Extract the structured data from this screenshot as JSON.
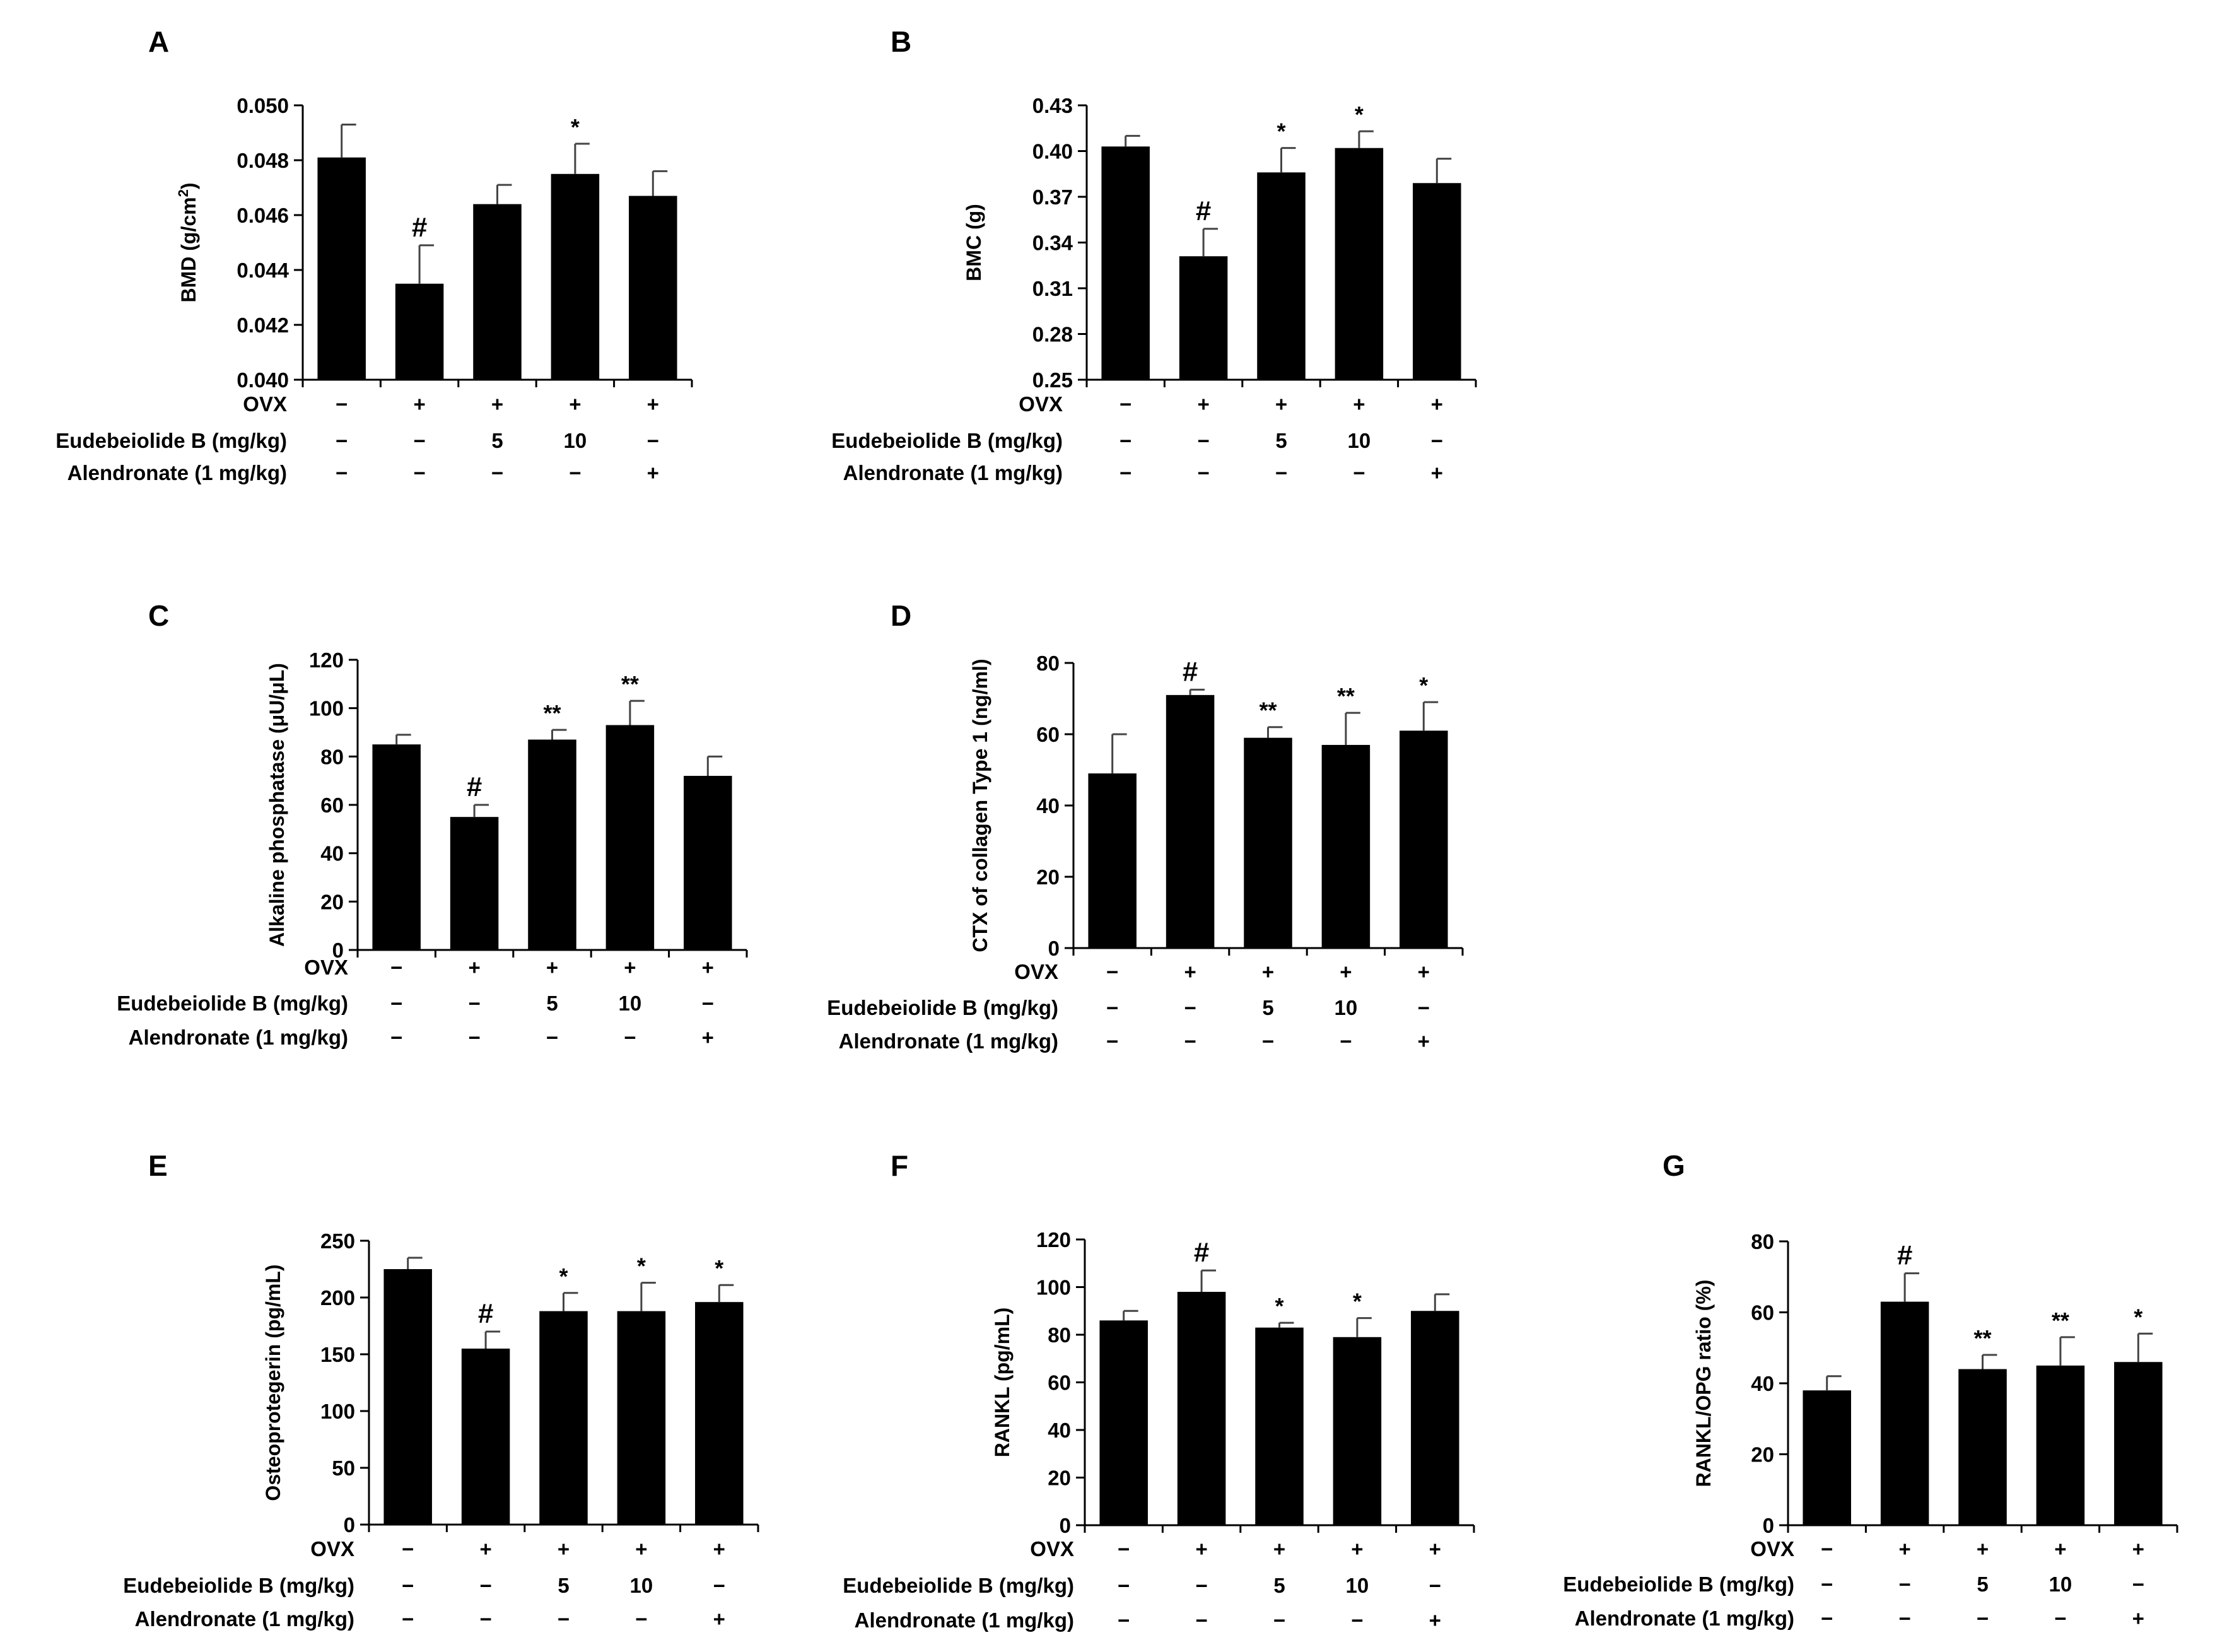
{
  "figure": {
    "row_labels": [
      "OVX",
      "Eudebeiolide B (mg/kg)",
      "Alendronate (1 mg/kg)"
    ],
    "conditions": {
      "OVX": [
        "−",
        "+",
        "+",
        "+",
        "+"
      ],
      "Eudebeiolide B (mg/kg)": [
        "−",
        "−",
        "5",
        "10",
        "−"
      ],
      "Alendronate (1 mg/kg)": [
        "−",
        "−",
        "−",
        "−",
        "+"
      ]
    }
  },
  "chart_data": [
    {
      "panel": "A",
      "type": "bar",
      "ylabel": "BMD (g/cm2)",
      "ylim": [
        0.04,
        0.05
      ],
      "yticks": [
        "0.040",
        "0.042",
        "0.044",
        "0.046",
        "0.048",
        "0.050"
      ],
      "values": [
        0.0481,
        0.0435,
        0.0464,
        0.0475,
        0.0467
      ],
      "errors": [
        0.0012,
        0.0014,
        0.0007,
        0.0011,
        0.0009
      ],
      "significance": [
        "",
        "#",
        "",
        "*",
        ""
      ]
    },
    {
      "panel": "B",
      "type": "bar",
      "ylabel": "BMC (g)",
      "ylim": [
        0.25,
        0.43
      ],
      "yticks": [
        "0.25",
        "0.28",
        "0.31",
        "0.34",
        "0.37",
        "0.40",
        "0.43"
      ],
      "values": [
        0.403,
        0.331,
        0.386,
        0.402,
        0.379
      ],
      "errors": [
        0.007,
        0.018,
        0.016,
        0.011,
        0.016
      ],
      "significance": [
        "",
        "#",
        "*",
        "*",
        ""
      ]
    },
    {
      "panel": "C",
      "type": "bar",
      "ylabel": "Alkaline phosphatase (μU/μL)",
      "ylim": [
        0,
        120
      ],
      "yticks": [
        "0",
        "20",
        "40",
        "60",
        "80",
        "100",
        "120"
      ],
      "values": [
        85,
        55,
        87,
        93,
        72
      ],
      "errors": [
        4,
        5,
        4,
        10,
        8
      ],
      "significance": [
        "",
        "#",
        "**",
        "**",
        ""
      ]
    },
    {
      "panel": "D",
      "type": "bar",
      "ylabel": "CTX of collagen  Type 1 (ng/ml)",
      "ylim": [
        0,
        80
      ],
      "yticks": [
        "0",
        "20",
        "40",
        "60",
        "80"
      ],
      "values": [
        49,
        71,
        59,
        57,
        61
      ],
      "errors": [
        11,
        1.5,
        3,
        9,
        8
      ],
      "significance": [
        "",
        "#",
        "**",
        "**",
        "*"
      ]
    },
    {
      "panel": "E",
      "type": "bar",
      "ylabel": "Osteoprotegerin (pg/mL)",
      "ylim": [
        0,
        250
      ],
      "yticks": [
        "0",
        "50",
        "100",
        "150",
        "200",
        "250"
      ],
      "values": [
        225,
        155,
        188,
        188,
        196
      ],
      "errors": [
        10,
        15,
        16,
        25,
        15
      ],
      "significance": [
        "",
        "#",
        "*",
        "*",
        "*"
      ]
    },
    {
      "panel": "F",
      "type": "bar",
      "ylabel": "RANKL (pg/mL)",
      "ylim": [
        0,
        120
      ],
      "yticks": [
        "0",
        "20",
        "40",
        "60",
        "80",
        "100",
        "120"
      ],
      "values": [
        86,
        98,
        83,
        79,
        90
      ],
      "errors": [
        4,
        9,
        2,
        8,
        7
      ],
      "significance": [
        "",
        "#",
        "*",
        "*",
        ""
      ]
    },
    {
      "panel": "G",
      "type": "bar",
      "ylabel": "RANKL/OPG ratio (%)",
      "ylim": [
        0,
        80
      ],
      "yticks": [
        "0",
        "20",
        "40",
        "60",
        "80"
      ],
      "values": [
        38,
        63,
        44,
        45,
        46
      ],
      "errors": [
        4,
        8,
        4,
        8,
        8
      ],
      "significance": [
        "",
        "#",
        "**",
        "**",
        "*"
      ]
    }
  ]
}
